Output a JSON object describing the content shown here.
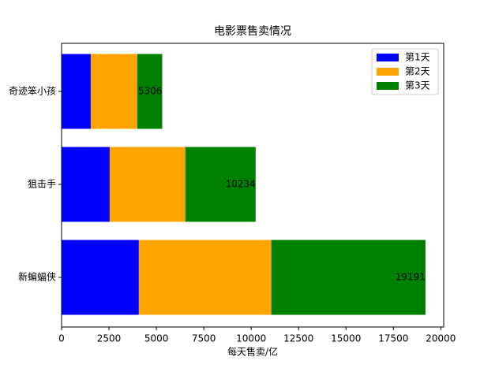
{
  "chart_data": {
    "type": "barh_stacked",
    "title": "电影票售卖情况",
    "xlabel": "每天售卖/亿",
    "categories": [
      "新蝙蝠侠",
      "狙击手",
      "奇迹笨小孩"
    ],
    "series": [
      {
        "name": "第1天",
        "color": "#0000ff",
        "values": [
          4075,
          2536,
          1538
        ]
      },
      {
        "name": "第2天",
        "color": "#ffa500",
        "values": [
          6985,
          3992,
          2454
        ]
      },
      {
        "name": "第3天",
        "color": "#008000",
        "values": [
          8131,
          3706,
          1314
        ]
      }
    ],
    "totals": [
      19191,
      10234,
      5306
    ],
    "xlim": [
      0,
      20151
    ],
    "xticks": [
      0,
      2500,
      5000,
      7500,
      10000,
      12500,
      15000,
      17500,
      20000
    ],
    "legend": "upper right",
    "grid": false
  }
}
